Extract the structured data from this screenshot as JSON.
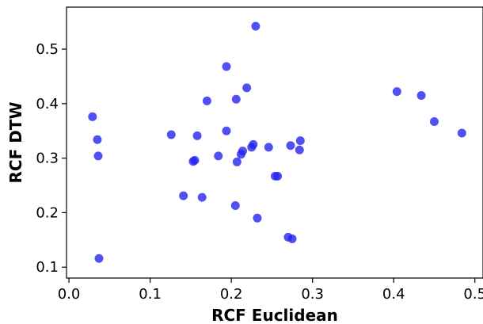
{
  "chart_data": {
    "type": "scatter",
    "xlabel": "RCF Euclidean",
    "ylabel": "RCF DTW",
    "xlim": [
      -0.003,
      0.51
    ],
    "ylim": [
      0.08,
      0.577
    ],
    "x_ticks": [
      0.0,
      0.1,
      0.2,
      0.3,
      0.4,
      0.5
    ],
    "x_tick_labels": [
      "0.0",
      "0.1",
      "0.2",
      "0.3",
      "0.4",
      "0.5"
    ],
    "y_ticks": [
      0.1,
      0.2,
      0.3,
      0.4,
      0.5
    ],
    "y_tick_labels": [
      "0.1",
      "0.2",
      "0.3",
      "0.4",
      "0.5"
    ],
    "grid": false,
    "marker_color": "#2020f0",
    "marker_opacity": 0.78,
    "points": [
      {
        "x": 0.029,
        "y": 0.376
      },
      {
        "x": 0.035,
        "y": 0.334
      },
      {
        "x": 0.036,
        "y": 0.304
      },
      {
        "x": 0.037,
        "y": 0.116
      },
      {
        "x": 0.126,
        "y": 0.343
      },
      {
        "x": 0.141,
        "y": 0.231
      },
      {
        "x": 0.153,
        "y": 0.294
      },
      {
        "x": 0.155,
        "y": 0.296
      },
      {
        "x": 0.158,
        "y": 0.341
      },
      {
        "x": 0.164,
        "y": 0.228
      },
      {
        "x": 0.17,
        "y": 0.405
      },
      {
        "x": 0.184,
        "y": 0.304
      },
      {
        "x": 0.194,
        "y": 0.35
      },
      {
        "x": 0.194,
        "y": 0.468
      },
      {
        "x": 0.205,
        "y": 0.213
      },
      {
        "x": 0.206,
        "y": 0.408
      },
      {
        "x": 0.207,
        "y": 0.293
      },
      {
        "x": 0.212,
        "y": 0.307
      },
      {
        "x": 0.214,
        "y": 0.313
      },
      {
        "x": 0.219,
        "y": 0.429
      },
      {
        "x": 0.225,
        "y": 0.32
      },
      {
        "x": 0.227,
        "y": 0.325
      },
      {
        "x": 0.23,
        "y": 0.542
      },
      {
        "x": 0.232,
        "y": 0.19
      },
      {
        "x": 0.246,
        "y": 0.32
      },
      {
        "x": 0.254,
        "y": 0.267
      },
      {
        "x": 0.257,
        "y": 0.267
      },
      {
        "x": 0.27,
        "y": 0.155
      },
      {
        "x": 0.273,
        "y": 0.323
      },
      {
        "x": 0.275,
        "y": 0.152
      },
      {
        "x": 0.284,
        "y": 0.315
      },
      {
        "x": 0.285,
        "y": 0.332
      },
      {
        "x": 0.404,
        "y": 0.422
      },
      {
        "x": 0.434,
        "y": 0.415
      },
      {
        "x": 0.45,
        "y": 0.367
      },
      {
        "x": 0.484,
        "y": 0.346
      }
    ]
  }
}
